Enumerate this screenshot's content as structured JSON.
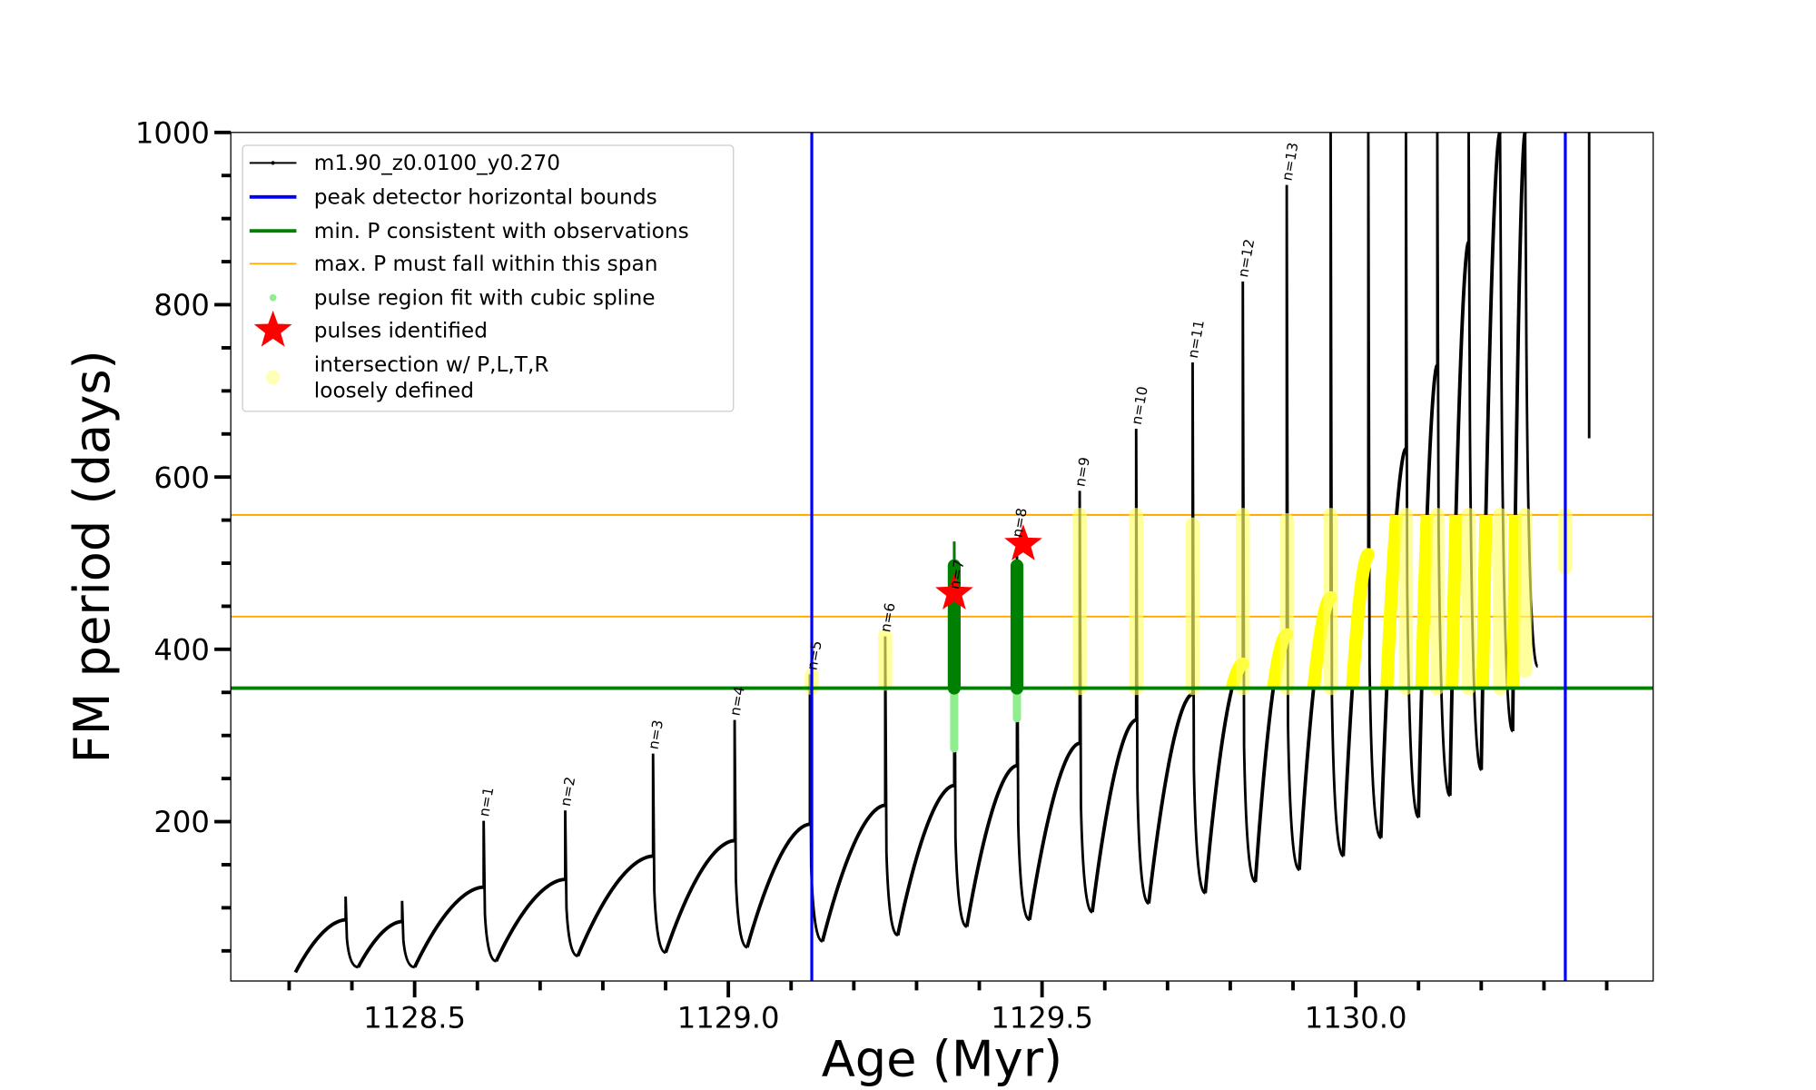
{
  "chart_data": {
    "type": "line",
    "title": "",
    "xlabel": "Age (Myr)",
    "ylabel": "FM period (days)",
    "xlim": [
      1128.207,
      1130.474
    ],
    "ylim": [
      15,
      1000
    ],
    "xticks": [
      1128.5,
      1129.0,
      1129.5,
      1130.0
    ],
    "xtick_labels": [
      "1128.5",
      "1129.0",
      "1129.5",
      "1130.0"
    ],
    "yticks": [
      200,
      400,
      600,
      800,
      1000
    ],
    "ytick_labels": [
      "200",
      "400",
      "600",
      "800",
      "1000"
    ],
    "grid": false,
    "legend_position": "top-left",
    "legend": [
      {
        "label": "m1.90_z0.0100_y0.270",
        "style": "line-dot",
        "color": "#000000"
      },
      {
        "label": "peak detector horizontal bounds",
        "style": "thick-line",
        "color": "#0000ff"
      },
      {
        "label": "min. P consistent with observations",
        "style": "thick-line",
        "color": "#008000"
      },
      {
        "label": "max. P must fall within this span",
        "style": "thin-line",
        "color": "#ffa500"
      },
      {
        "label": "pulse region fit with cubic spline",
        "style": "dot",
        "color": "#90ee90"
      },
      {
        "label": "pulses identified",
        "style": "star",
        "color": "#ff0000"
      },
      {
        "label": "intersection w/ P,L,T,R",
        "label2": "loosely defined",
        "style": "circle",
        "color": "#ffff99"
      }
    ],
    "series": [
      {
        "name": "m1.90_z0.0100_y0.270",
        "start": {
          "age": 1128.31,
          "period": 25
        },
        "cycles": [
          {
            "age": 1128.39,
            "peak": 86,
            "spike": 113,
            "min": 31
          },
          {
            "age": 1128.48,
            "peak": 84,
            "spike": 108,
            "min": 31
          },
          {
            "age": 1128.61,
            "peak": 124,
            "spike": 201,
            "min": 38
          },
          {
            "age": 1128.74,
            "peak": 133,
            "spike": 213,
            "min": 44
          },
          {
            "age": 1128.88,
            "peak": 160,
            "spike": 279,
            "min": 48
          },
          {
            "age": 1129.01,
            "peak": 178,
            "spike": 318,
            "min": 54
          },
          {
            "age": 1129.13,
            "peak": 197,
            "spike": 371,
            "min": 61
          },
          {
            "age": 1129.25,
            "peak": 219,
            "spike": 415,
            "min": 68
          },
          {
            "age": 1129.36,
            "peak": 242,
            "spike": 525,
            "min": 78
          },
          {
            "age": 1129.46,
            "peak": 265,
            "spike": 510,
            "min": 86
          },
          {
            "age": 1129.56,
            "peak": 291,
            "spike": 584,
            "min": 95
          },
          {
            "age": 1129.65,
            "peak": 318,
            "spike": 656,
            "min": 105
          },
          {
            "age": 1129.74,
            "peak": 348,
            "spike": 733,
            "min": 117
          },
          {
            "age": 1129.82,
            "peak": 383,
            "spike": 827,
            "min": 130
          },
          {
            "age": 1129.89,
            "peak": 417,
            "spike": 939,
            "min": 144
          },
          {
            "age": 1129.96,
            "peak": 460,
            "spike": 1000,
            "min": 160
          },
          {
            "age": 1130.02,
            "peak": 510,
            "spike": 1000,
            "min": 181
          },
          {
            "age": 1130.08,
            "peak": 633,
            "spike": 1000,
            "min": 205
          },
          {
            "age": 1130.13,
            "peak": 730,
            "spike": 1000,
            "min": 230
          },
          {
            "age": 1130.18,
            "peak": 873,
            "spike": 1000,
            "min": 260
          },
          {
            "age": 1130.23,
            "peak": 1000,
            "spike": 1000,
            "min": 305
          },
          {
            "age": 1130.27,
            "peak": 1000,
            "spike": 1000,
            "min": 380
          }
        ],
        "tail": {
          "age": 1130.372,
          "from": 1000,
          "to": 645
        }
      }
    ],
    "vertical_bounds": [
      1129.133,
      1130.334
    ],
    "min_period": 355,
    "max_period_span": [
      438,
      556
    ],
    "spline_regions": [
      {
        "age": 1129.36,
        "dark_from": 355,
        "dark_to": 497,
        "light_from": 285,
        "light_to": 355
      },
      {
        "age": 1129.46,
        "dark_from": 355,
        "dark_to": 497,
        "light_from": 320,
        "light_to": 355
      }
    ],
    "pulses_identified": [
      {
        "age": 1129.36,
        "period": 465
      },
      {
        "age": 1129.47,
        "period": 522
      }
    ],
    "intersection_regions": [
      {
        "age": 1129.133,
        "from": 355,
        "to": 370
      },
      {
        "age": 1129.25,
        "from": 360,
        "to": 415
      },
      {
        "age": 1129.56,
        "from": 355,
        "to": 556
      },
      {
        "age": 1129.65,
        "from": 355,
        "to": 556
      },
      {
        "age": 1129.74,
        "from": 355,
        "to": 545
      },
      {
        "age": 1129.82,
        "from": 355,
        "to": 556
      },
      {
        "age": 1129.89,
        "from": 355,
        "to": 550
      },
      {
        "age": 1129.96,
        "from": 355,
        "to": 556
      },
      {
        "age": 1130.08,
        "from": 355,
        "to": 556
      },
      {
        "age": 1130.13,
        "from": 355,
        "to": 556
      },
      {
        "age": 1130.18,
        "from": 355,
        "to": 556
      },
      {
        "age": 1130.23,
        "from": 355,
        "to": 556
      },
      {
        "age": 1130.27,
        "from": 375,
        "to": 556
      },
      {
        "age": 1130.334,
        "from": 495,
        "to": 556
      }
    ],
    "annotations": [
      {
        "text": "n=1",
        "age": 1128.61,
        "period": 201
      },
      {
        "text": "n=2",
        "age": 1128.74,
        "period": 213
      },
      {
        "text": "n=3",
        "age": 1128.88,
        "period": 279
      },
      {
        "text": "n=4",
        "age": 1129.01,
        "period": 318
      },
      {
        "text": "n=5",
        "age": 1129.133,
        "period": 371
      },
      {
        "text": "n=6",
        "age": 1129.25,
        "period": 415
      },
      {
        "text": "n=7",
        "age": 1129.36,
        "period": 465
      },
      {
        "text": "n=8",
        "age": 1129.46,
        "period": 525
      },
      {
        "text": "n=9",
        "age": 1129.56,
        "period": 584
      },
      {
        "text": "n=10",
        "age": 1129.65,
        "period": 656
      },
      {
        "text": "n=11",
        "age": 1129.74,
        "period": 733
      },
      {
        "text": "n=12",
        "age": 1129.82,
        "period": 827
      },
      {
        "text": "n=13",
        "age": 1129.89,
        "period": 939
      }
    ]
  }
}
